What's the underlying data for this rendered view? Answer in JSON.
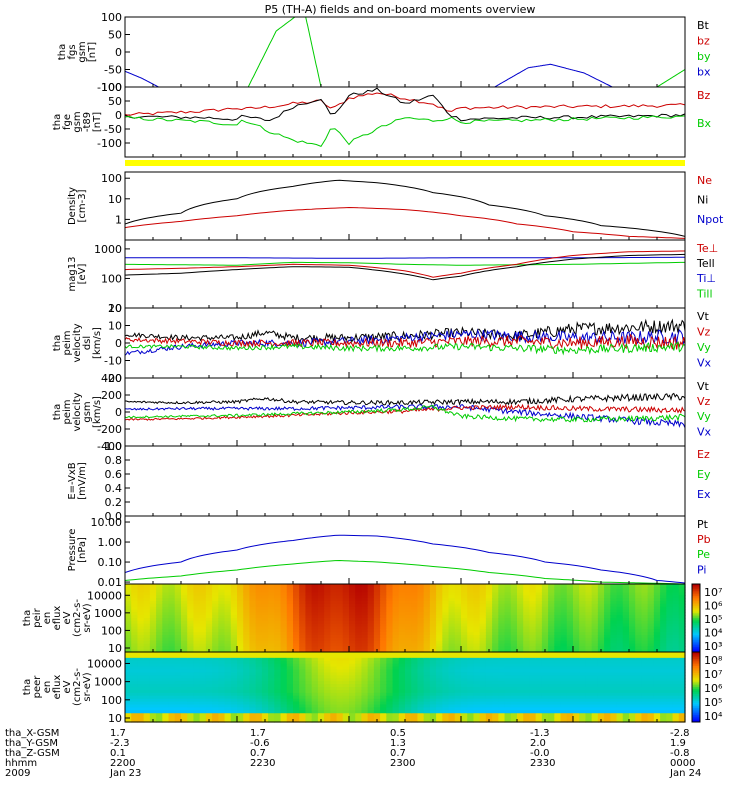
{
  "title": "P5 (TH-A) fields and on-board moments overview",
  "colors": {
    "black": "#000000",
    "red": "#cc0000",
    "green": "#00cc00",
    "blue": "#0000cc",
    "yellow": "#ffff00"
  },
  "chart_data": [
    {
      "type": "line",
      "ylabel": [
        "tha",
        "fgs",
        "gsm",
        "[nT]"
      ],
      "ylim": [
        -100,
        100
      ],
      "yticks": [
        "100",
        "50",
        "0",
        "-50",
        "-100"
      ],
      "legend": [
        {
          "label": "Bt",
          "color": "#000000"
        },
        {
          "label": "bz",
          "color": "#cc0000"
        },
        {
          "label": "by",
          "color": "#00cc00"
        },
        {
          "label": "bx",
          "color": "#0000cc"
        }
      ],
      "series": [
        {
          "color": "#00cc00",
          "x": [
            0.22,
            0.27,
            0.32,
            0.35
          ],
          "y": [
            -100,
            60,
            120,
            -100
          ]
        },
        {
          "color": "#0000cc",
          "x": [
            0.0,
            0.03,
            0.06
          ],
          "y": [
            -55,
            -75,
            -100
          ]
        },
        {
          "color": "#0000cc",
          "x": [
            0.66,
            0.72,
            0.76,
            0.82,
            0.87
          ],
          "y": [
            -100,
            -45,
            -35,
            -60,
            -100
          ]
        },
        {
          "color": "#00cc00",
          "x": [
            0.95,
            0.98,
            1.0
          ],
          "y": [
            -100,
            -70,
            -50
          ]
        }
      ]
    },
    {
      "type": "line",
      "ylabel": [
        "tha",
        "fge",
        "gsm",
        "-t89",
        "[nT]"
      ],
      "ylim": [
        -150,
        100
      ],
      "yticks": [
        "100",
        "50",
        "0",
        "-50",
        "-100"
      ],
      "legend": [
        {
          "label": "Bz",
          "color": "#cc0000"
        },
        {
          "label": "Bx",
          "color": "#00cc00"
        }
      ],
      "bar": "yellow",
      "series": [
        {
          "color": "#cc0000",
          "x": [
            0,
            0.1,
            0.15,
            0.2,
            0.21,
            0.26,
            0.3,
            0.35,
            0.37,
            0.4,
            0.45,
            0.5,
            0.55,
            0.58,
            0.6,
            0.7,
            0.8,
            0.9,
            1.0
          ],
          "y": [
            0,
            10,
            15,
            25,
            20,
            30,
            40,
            50,
            20,
            60,
            80,
            60,
            40,
            10,
            25,
            28,
            30,
            32,
            35
          ]
        },
        {
          "color": "#000000",
          "x": [
            0,
            0.1,
            0.15,
            0.2,
            0.21,
            0.26,
            0.3,
            0.35,
            0.37,
            0.4,
            0.45,
            0.5,
            0.55,
            0.58,
            0.6,
            0.7,
            0.8,
            0.9,
            1.0
          ],
          "y": [
            -5,
            -8,
            -10,
            -15,
            -5,
            -20,
            30,
            60,
            -10,
            70,
            90,
            40,
            70,
            0,
            -15,
            -10,
            -8,
            -5,
            0
          ]
        },
        {
          "color": "#00cc00",
          "x": [
            0,
            0.1,
            0.15,
            0.2,
            0.21,
            0.26,
            0.3,
            0.35,
            0.37,
            0.4,
            0.45,
            0.5,
            0.55,
            0.58,
            0.6,
            0.7,
            0.8,
            0.9,
            1.0
          ],
          "y": [
            -10,
            -20,
            -25,
            -35,
            -15,
            -60,
            -90,
            -110,
            -40,
            -100,
            -50,
            -10,
            -20,
            -10,
            -25,
            -20,
            -15,
            -10,
            -5
          ]
        }
      ]
    },
    {
      "type": "line",
      "ylabel": [
        "Density",
        "[cm-3]"
      ],
      "yscale": "log",
      "ylim": [
        0.1,
        200
      ],
      "yticks": [
        "100",
        "10",
        "1"
      ],
      "ytick_values": [
        100,
        10,
        1
      ],
      "legend": [
        {
          "label": "Ne",
          "color": "#cc0000"
        },
        {
          "label": "Ni",
          "color": "#000000"
        },
        {
          "label": "Npot",
          "color": "#0000cc"
        }
      ],
      "series": [
        {
          "color": "#000000",
          "x": [
            0,
            0.1,
            0.2,
            0.3,
            0.38,
            0.45,
            0.55,
            0.65,
            0.75,
            0.85,
            1.0
          ],
          "y": [
            0.6,
            2,
            10,
            40,
            80,
            60,
            20,
            5,
            1.5,
            0.5,
            0.15
          ]
        },
        {
          "color": "#cc0000",
          "x": [
            0,
            0.1,
            0.2,
            0.3,
            0.4,
            0.5,
            0.6,
            0.7,
            0.8,
            0.9,
            1.0
          ],
          "y": [
            0.4,
            0.8,
            1.5,
            2.8,
            3.8,
            3,
            1.5,
            0.6,
            0.25,
            0.15,
            0.12
          ]
        }
      ]
    },
    {
      "type": "line",
      "ylabel": [
        "mag13",
        "[eV]"
      ],
      "yscale": "log",
      "ylim": [
        10,
        2000
      ],
      "yticks": [
        "1000",
        "100",
        "10"
      ],
      "ytick_values": [
        1000,
        100,
        10
      ],
      "legend": [
        {
          "label": "Te⊥",
          "color": "#cc0000"
        },
        {
          "label": "Tell",
          "color": "#000000"
        },
        {
          "label": "Ti⊥",
          "color": "#0000cc"
        },
        {
          "label": "Till",
          "color": "#00cc00"
        }
      ],
      "series": [
        {
          "color": "#0000cc",
          "x": [
            0,
            0.2,
            0.4,
            0.6,
            0.8,
            1.0
          ],
          "y": [
            500,
            500,
            480,
            500,
            500,
            520
          ]
        },
        {
          "color": "#00cc00",
          "x": [
            0,
            0.2,
            0.3,
            0.4,
            0.5,
            0.6,
            0.8,
            1.0
          ],
          "y": [
            300,
            280,
            350,
            340,
            300,
            280,
            300,
            350
          ]
        },
        {
          "color": "#cc0000",
          "x": [
            0,
            0.1,
            0.2,
            0.3,
            0.4,
            0.5,
            0.55,
            0.6,
            0.7,
            0.8,
            0.9,
            1.0
          ],
          "y": [
            200,
            220,
            250,
            300,
            280,
            180,
            110,
            150,
            300,
            600,
            800,
            850
          ]
        },
        {
          "color": "#000000",
          "x": [
            0,
            0.1,
            0.2,
            0.3,
            0.4,
            0.5,
            0.55,
            0.6,
            0.7,
            0.8,
            0.9,
            1.0
          ],
          "y": [
            130,
            150,
            200,
            250,
            240,
            140,
            90,
            120,
            250,
            450,
            600,
            650
          ]
        }
      ]
    },
    {
      "type": "line",
      "ylabel": [
        "tha",
        "peim",
        "velocity",
        "dsl",
        "[km/s]"
      ],
      "ylim": [
        -20,
        20
      ],
      "yticks": [
        "20",
        "10",
        "0",
        "-10",
        "-20"
      ],
      "legend": [
        {
          "label": "Vt",
          "color": "#000000"
        },
        {
          "label": "Vz",
          "color": "#cc0000"
        },
        {
          "label": "Vy",
          "color": "#00cc00"
        },
        {
          "label": "Vx",
          "color": "#0000cc"
        }
      ],
      "series": [
        {
          "color": "#000000",
          "x": [
            0,
            0.1,
            0.2,
            0.25,
            0.3,
            0.4,
            0.5,
            0.6,
            0.7,
            0.8,
            0.9,
            1.0
          ],
          "y": [
            5,
            3,
            3,
            6,
            3,
            3,
            4,
            6,
            4,
            8,
            9,
            10
          ],
          "noise": 3
        },
        {
          "color": "#0000cc",
          "x": [
            0,
            0.1,
            0.2,
            0.3,
            0.4,
            0.5,
            0.6,
            0.7,
            0.8,
            0.9,
            1.0
          ],
          "y": [
            -6,
            -2,
            0,
            0,
            1,
            3,
            5,
            4,
            3,
            3,
            4
          ],
          "noise": 3
        },
        {
          "color": "#cc0000",
          "x": [
            0,
            0.1,
            0.2,
            0.3,
            0.4,
            0.5,
            0.6,
            0.7,
            0.8,
            0.9,
            1.0
          ],
          "y": [
            2,
            1,
            0,
            0,
            0,
            0,
            1,
            1,
            0,
            1,
            0
          ],
          "noise": 3
        },
        {
          "color": "#00cc00",
          "x": [
            0,
            0.1,
            0.2,
            0.3,
            0.4,
            0.5,
            0.6,
            0.7,
            0.8,
            0.9,
            1.0
          ],
          "y": [
            -2,
            -2,
            -3,
            -2,
            -3,
            -3,
            -2,
            -3,
            -4,
            -3,
            -2
          ],
          "noise": 2
        }
      ]
    },
    {
      "type": "line",
      "ylabel": [
        "tha",
        "peim",
        "velocity",
        "gsm",
        "[km/s]"
      ],
      "ylim": [
        -400,
        400
      ],
      "yticks": [
        "400",
        "200",
        "0",
        "-200",
        "-400"
      ],
      "legend": [
        {
          "label": "Vt",
          "color": "#000000"
        },
        {
          "label": "Vz",
          "color": "#cc0000"
        },
        {
          "label": "Vy",
          "color": "#00cc00"
        },
        {
          "label": "Vx",
          "color": "#0000cc"
        }
      ],
      "series": [
        {
          "color": "#000000",
          "x": [
            0,
            0.1,
            0.2,
            0.25,
            0.3,
            0.4,
            0.5,
            0.6,
            0.7,
            0.8,
            0.9,
            1.0
          ],
          "y": [
            120,
            110,
            120,
            160,
            120,
            110,
            110,
            120,
            120,
            150,
            170,
            180
          ],
          "noise": 30
        },
        {
          "color": "#0000cc",
          "x": [
            0,
            0.1,
            0.2,
            0.3,
            0.4,
            0.5,
            0.6,
            0.7,
            0.8,
            0.9,
            1.0
          ],
          "y": [
            30,
            40,
            40,
            40,
            50,
            60,
            60,
            0,
            -50,
            -100,
            -150
          ],
          "noise": 30
        },
        {
          "color": "#cc0000",
          "x": [
            0,
            0.1,
            0.2,
            0.3,
            0.4,
            0.5,
            0.6,
            0.7,
            0.8,
            0.9,
            1.0
          ],
          "y": [
            -90,
            -80,
            -60,
            -40,
            -10,
            10,
            50,
            60,
            40,
            30,
            20
          ],
          "noise": 25
        },
        {
          "color": "#00cc00",
          "x": [
            0,
            0.1,
            0.2,
            0.3,
            0.4,
            0.5,
            0.55,
            0.6,
            0.7,
            0.8,
            0.9,
            1.0
          ],
          "y": [
            -60,
            -50,
            -40,
            -20,
            0,
            30,
            60,
            -50,
            -80,
            -90,
            -80,
            -60
          ],
          "noise": 25
        }
      ]
    },
    {
      "type": "line",
      "ylabel": [
        "E=-VxB",
        "[mV/m]"
      ],
      "ylim": [
        0,
        1
      ],
      "yticks": [
        "1.0",
        "0.8",
        "0.6",
        "0.4",
        "0.2",
        "0.0"
      ],
      "legend": [
        {
          "label": "Ez",
          "color": "#cc0000"
        },
        {
          "label": "Ey",
          "color": "#00cc00"
        },
        {
          "label": "Ex",
          "color": "#0000cc"
        }
      ],
      "series": []
    },
    {
      "type": "line",
      "ylabel": [
        "Pressure",
        "[nPa]"
      ],
      "yscale": "log",
      "ylim": [
        0.008,
        20
      ],
      "yticks": [
        "10.00",
        "1.00",
        "0.10",
        "0.01"
      ],
      "ytick_values": [
        10,
        1,
        0.1,
        0.01
      ],
      "legend": [
        {
          "label": "Pt",
          "color": "#000000"
        },
        {
          "label": "Pb",
          "color": "#cc0000"
        },
        {
          "label": "Pe",
          "color": "#00cc00"
        },
        {
          "label": "Pi",
          "color": "#0000cc"
        }
      ],
      "series": [
        {
          "color": "#0000cc",
          "x": [
            0,
            0.1,
            0.2,
            0.3,
            0.38,
            0.45,
            0.55,
            0.65,
            0.75,
            0.85,
            0.95,
            1.0
          ],
          "y": [
            0.03,
            0.1,
            0.4,
            1.2,
            2.2,
            2,
            0.8,
            0.3,
            0.1,
            0.04,
            0.012,
            0.009
          ]
        },
        {
          "color": "#00cc00",
          "x": [
            0,
            0.1,
            0.2,
            0.3,
            0.38,
            0.45,
            0.55,
            0.65,
            0.75,
            0.85,
            1.0
          ],
          "y": [
            0.012,
            0.02,
            0.04,
            0.08,
            0.12,
            0.1,
            0.06,
            0.03,
            0.015,
            0.01,
            0.008
          ]
        }
      ]
    },
    {
      "type": "heatmap",
      "ylabel": [
        "tha",
        "peir",
        "en",
        "eflux",
        "eV",
        "(cm2-s-",
        "sr-eV)"
      ],
      "yscale": "log",
      "yticks": [
        "10000",
        "1000",
        "100",
        "10"
      ],
      "ytick_values": [
        10000,
        1000,
        100,
        10
      ],
      "colorbar_ticks": [
        "10⁷",
        "10⁶",
        "10⁵",
        "10⁴",
        "10³"
      ]
    },
    {
      "type": "heatmap",
      "ylabel": [
        "tha",
        "peer",
        "en",
        "eflux",
        "eV",
        "(cm2-s-",
        "sr-eV)"
      ],
      "yscale": "log",
      "yticks": [
        "10000",
        "1000",
        "100",
        "10"
      ],
      "ytick_values": [
        10000,
        1000,
        100,
        10
      ],
      "colorbar_ticks": [
        "10⁸",
        "10⁷",
        "10⁶",
        "10⁵",
        "10⁴"
      ]
    }
  ],
  "ephemeris": {
    "rows": [
      {
        "label": "tha_X-GSM",
        "values": [
          "1.7",
          "1.7",
          "0.5",
          "-1.3",
          "-2.8"
        ]
      },
      {
        "label": "tha_Y-GSM",
        "values": [
          "-2.3",
          "-0.6",
          "1.3",
          "2.0",
          "1.9"
        ]
      },
      {
        "label": "tha_Z-GSM",
        "values": [
          "0.1",
          "0.7",
          "0.7",
          "-0.0",
          "-0.8"
        ]
      },
      {
        "label": "hhmm",
        "values": [
          "2200",
          "2230",
          "2300",
          "2330",
          "0000"
        ]
      },
      {
        "label": "2009",
        "values": [
          "Jan 23",
          "",
          "",
          "",
          "Jan 24"
        ]
      }
    ]
  }
}
